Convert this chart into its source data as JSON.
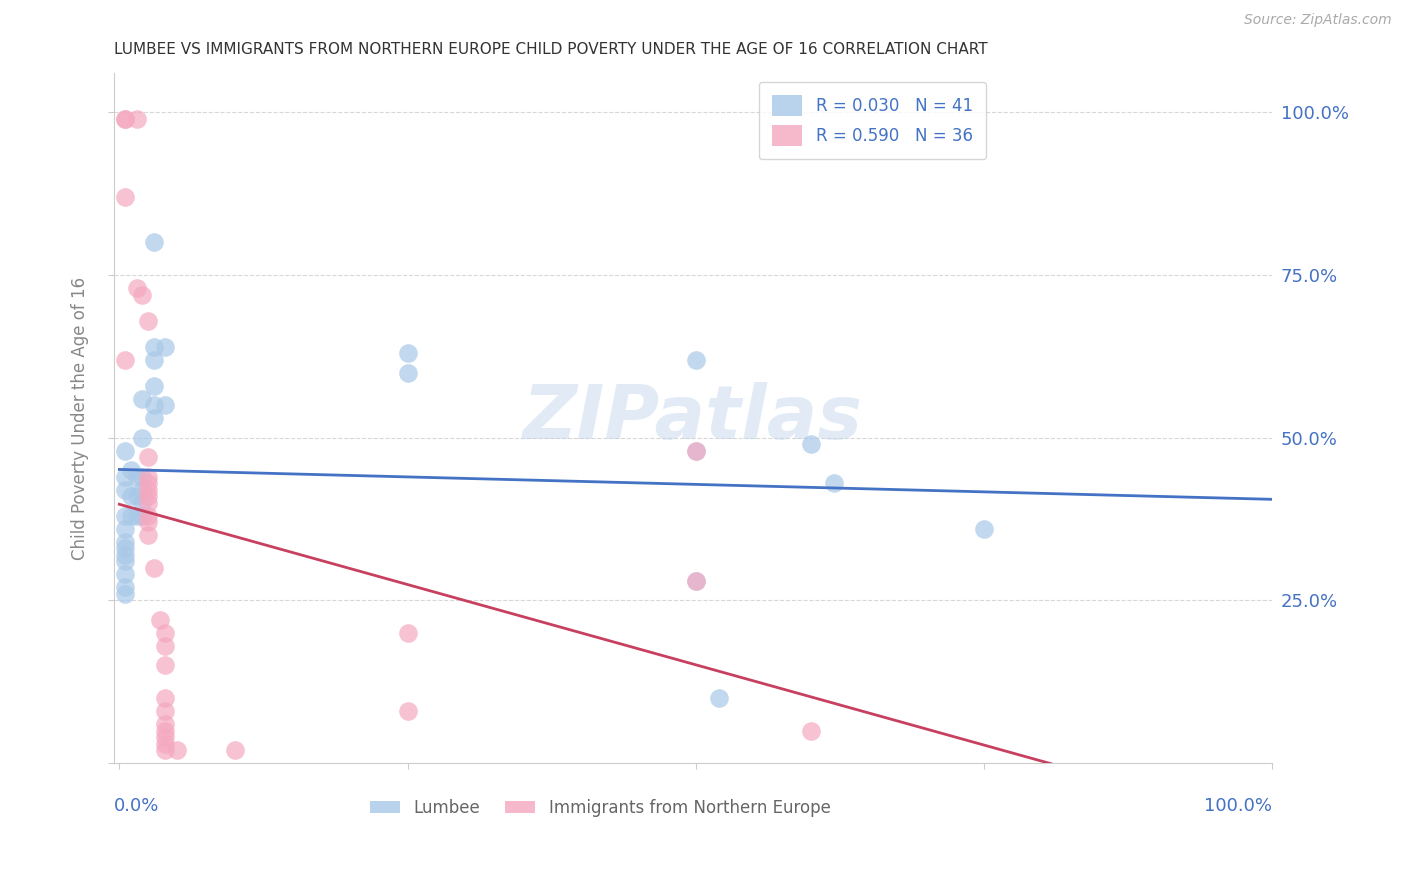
{
  "title": "LUMBEE VS IMMIGRANTS FROM NORTHERN EUROPE CHILD POVERTY UNDER THE AGE OF 16 CORRELATION CHART",
  "source": "Source: ZipAtlas.com",
  "ylabel": "Child Poverty Under the Age of 16",
  "watermark": "ZIPatlas",
  "blue_label_legend": "R = 0.030   N = 41",
  "pink_label_legend": "R = 0.590   N = 36",
  "lumbee_label": "Lumbee",
  "imm_label": "Immigrants from Northern Europe",
  "blue_color": "#a8c8e8",
  "pink_color": "#f4a8c0",
  "blue_line_color": "#4472c4",
  "pink_line_color": "#c84060",
  "axis_label_color": "#4472c4",
  "background_color": "#ffffff",
  "grid_color": "#d8d8d8",
  "title_color": "#333333",
  "blue_points": [
    [
      0.005,
      0.44
    ],
    [
      0.005,
      0.48
    ],
    [
      0.005,
      0.42
    ],
    [
      0.005,
      0.38
    ],
    [
      0.005,
      0.36
    ],
    [
      0.005,
      0.34
    ],
    [
      0.005,
      0.33
    ],
    [
      0.005,
      0.32
    ],
    [
      0.005,
      0.31
    ],
    [
      0.005,
      0.29
    ],
    [
      0.005,
      0.27
    ],
    [
      0.005,
      0.26
    ],
    [
      0.01,
      0.45
    ],
    [
      0.01,
      0.41
    ],
    [
      0.01,
      0.38
    ],
    [
      0.015,
      0.44
    ],
    [
      0.015,
      0.41
    ],
    [
      0.015,
      0.38
    ],
    [
      0.02,
      0.56
    ],
    [
      0.02,
      0.5
    ],
    [
      0.02,
      0.44
    ],
    [
      0.02,
      0.42
    ],
    [
      0.02,
      0.4
    ],
    [
      0.02,
      0.38
    ],
    [
      0.03,
      0.8
    ],
    [
      0.03,
      0.64
    ],
    [
      0.03,
      0.62
    ],
    [
      0.03,
      0.58
    ],
    [
      0.03,
      0.55
    ],
    [
      0.03,
      0.53
    ],
    [
      0.04,
      0.64
    ],
    [
      0.04,
      0.55
    ],
    [
      0.25,
      0.63
    ],
    [
      0.25,
      0.6
    ],
    [
      0.5,
      0.62
    ],
    [
      0.5,
      0.48
    ],
    [
      0.5,
      0.28
    ],
    [
      0.6,
      0.49
    ],
    [
      0.62,
      0.43
    ],
    [
      0.75,
      0.36
    ],
    [
      0.52,
      0.1
    ]
  ],
  "pink_points": [
    [
      0.005,
      0.99
    ],
    [
      0.005,
      0.99
    ],
    [
      0.015,
      0.99
    ],
    [
      0.005,
      0.87
    ],
    [
      0.015,
      0.73
    ],
    [
      0.005,
      0.62
    ],
    [
      0.02,
      0.72
    ],
    [
      0.025,
      0.68
    ],
    [
      0.025,
      0.47
    ],
    [
      0.025,
      0.44
    ],
    [
      0.025,
      0.43
    ],
    [
      0.025,
      0.42
    ],
    [
      0.025,
      0.41
    ],
    [
      0.025,
      0.4
    ],
    [
      0.025,
      0.38
    ],
    [
      0.025,
      0.37
    ],
    [
      0.025,
      0.35
    ],
    [
      0.03,
      0.3
    ],
    [
      0.035,
      0.22
    ],
    [
      0.04,
      0.2
    ],
    [
      0.04,
      0.18
    ],
    [
      0.04,
      0.15
    ],
    [
      0.04,
      0.1
    ],
    [
      0.04,
      0.08
    ],
    [
      0.04,
      0.06
    ],
    [
      0.04,
      0.05
    ],
    [
      0.04,
      0.04
    ],
    [
      0.04,
      0.03
    ],
    [
      0.04,
      0.02
    ],
    [
      0.05,
      0.02
    ],
    [
      0.1,
      0.02
    ],
    [
      0.25,
      0.08
    ],
    [
      0.25,
      0.2
    ],
    [
      0.6,
      0.05
    ],
    [
      0.5,
      0.28
    ],
    [
      0.5,
      0.48
    ]
  ]
}
